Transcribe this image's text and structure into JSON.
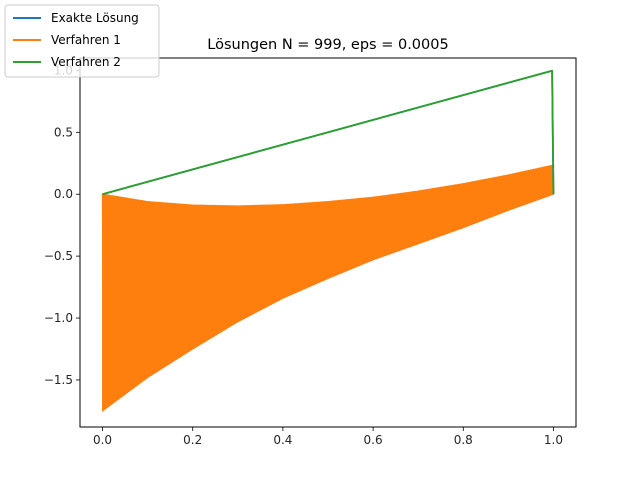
{
  "chart_data": {
    "type": "line",
    "title": "Lösungen N = 999, eps = 0.0005",
    "xlabel": "",
    "ylabel": "",
    "xlim": [
      -0.05,
      1.05
    ],
    "ylim": [
      -1.88,
      1.1
    ],
    "xticks": [
      0.0,
      0.2,
      0.4,
      0.6,
      0.8,
      1.0
    ],
    "xtick_labels": [
      "0.0",
      "0.2",
      "0.4",
      "0.6",
      "0.8",
      "1.0"
    ],
    "yticks": [
      -1.5,
      -1.0,
      -0.5,
      0.0,
      0.5,
      1.0
    ],
    "ytick_labels": [
      "−1.5",
      "−1.0",
      "−0.5",
      "0.0",
      "0.5",
      "1.0"
    ],
    "grid": false,
    "legend_position": "top-left",
    "series": [
      {
        "name": "Exakte Lösung",
        "color": "#1f77b4",
        "style": "line",
        "x": [
          0.0,
          0.997,
          0.9985,
          1.0
        ],
        "y": [
          0.0,
          0.997,
          0.5,
          0.0
        ]
      },
      {
        "name": "Verfahren 1",
        "color": "#ff7f0e",
        "style": "oscillating-band",
        "x": [
          0.0,
          0.1,
          0.2,
          0.3,
          0.4,
          0.5,
          0.6,
          0.7,
          0.8,
          0.9,
          1.0
        ],
        "upper": [
          0.0,
          -0.06,
          -0.088,
          -0.095,
          -0.085,
          -0.06,
          -0.025,
          0.025,
          0.085,
          0.155,
          0.235
        ],
        "lower": [
          -1.75,
          -1.48,
          -1.25,
          -1.03,
          -0.84,
          -0.68,
          -0.53,
          -0.4,
          -0.27,
          -0.13,
          0.0
        ]
      },
      {
        "name": "Verfahren 2",
        "color": "#2ca02c",
        "style": "line",
        "x": [
          0.0,
          0.997,
          0.9985,
          1.0
        ],
        "y": [
          0.0,
          0.997,
          0.5,
          0.0
        ]
      }
    ]
  }
}
